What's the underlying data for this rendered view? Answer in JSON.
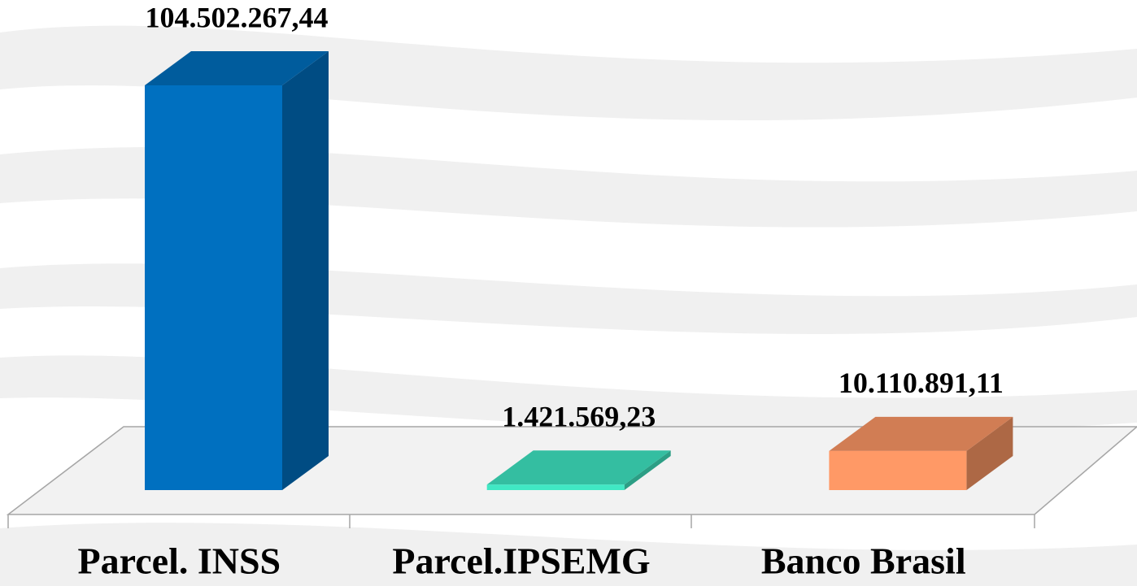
{
  "chart_data": {
    "type": "bar3d",
    "categories": [
      "Parcel. INSS",
      "Parcel.IPSEMG",
      "Banco Brasil"
    ],
    "values": [
      104502267.44,
      1421569.23,
      10110891.11
    ],
    "value_labels": [
      "104.502.267,44",
      "1.421.569,23",
      "10.110.891,11"
    ],
    "colors": [
      "#0070c0",
      "#40e8c4",
      "#ff9966"
    ]
  }
}
